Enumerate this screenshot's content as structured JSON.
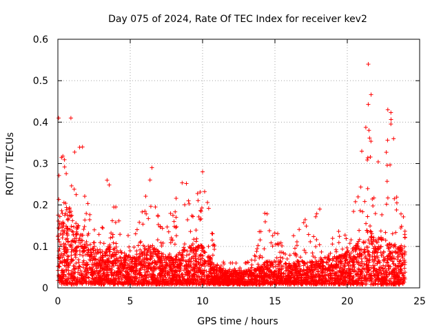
{
  "chart_data": {
    "type": "scatter",
    "title": "Day 075 of 2024, Rate Of TEC Index for receiver kev2",
    "xlabel": "GPS time / hours",
    "ylabel": "ROTI / TECUs",
    "xlim": [
      0,
      25
    ],
    "ylim": [
      0,
      0.6
    ],
    "x_ticks": [
      0,
      5,
      10,
      15,
      20,
      25
    ],
    "x_tick_labels": [
      "0",
      "5",
      "10",
      "15",
      "20",
      "25"
    ],
    "y_ticks": [
      0,
      0.1,
      0.2,
      0.3,
      0.4,
      0.5,
      0.6
    ],
    "y_tick_labels": [
      "0",
      "0.1",
      "0.2",
      "0.3",
      "0.4",
      "0.5",
      "0.6"
    ],
    "grid": true,
    "marker": "+",
    "color": "#ff0000",
    "series": [
      {
        "name": "ROTI",
        "envelope_x": [
          0,
          0.5,
          1,
          1.5,
          2,
          2.5,
          3,
          3.5,
          4,
          4.5,
          5,
          5.5,
          6,
          6.5,
          7,
          7.5,
          8,
          8.5,
          9,
          9.5,
          10,
          10.5,
          11,
          11.5,
          12,
          12.5,
          13,
          13.5,
          14,
          14.5,
          15,
          15.5,
          16,
          16.5,
          17,
          17.5,
          18,
          18.5,
          19,
          19.5,
          20,
          20.5,
          21,
          21.5,
          22,
          22.5,
          23,
          23.5,
          24
        ],
        "envelope_typical": [
          0.16,
          0.18,
          0.15,
          0.12,
          0.09,
          0.08,
          0.07,
          0.08,
          0.08,
          0.07,
          0.06,
          0.06,
          0.08,
          0.08,
          0.07,
          0.06,
          0.06,
          0.07,
          0.08,
          0.09,
          0.08,
          0.06,
          0.04,
          0.03,
          0.03,
          0.03,
          0.03,
          0.03,
          0.04,
          0.05,
          0.05,
          0.05,
          0.04,
          0.05,
          0.05,
          0.05,
          0.05,
          0.06,
          0.06,
          0.06,
          0.07,
          0.08,
          0.1,
          0.12,
          0.1,
          0.1,
          0.09,
          0.08,
          0.08
        ],
        "envelope_max": [
          0.41,
          0.3,
          0.41,
          0.34,
          0.22,
          0.17,
          0.13,
          0.26,
          0.21,
          0.15,
          0.15,
          0.14,
          0.21,
          0.29,
          0.15,
          0.14,
          0.21,
          0.25,
          0.27,
          0.22,
          0.28,
          0.2,
          0.08,
          0.06,
          0.06,
          0.06,
          0.06,
          0.07,
          0.16,
          0.18,
          0.15,
          0.1,
          0.09,
          0.16,
          0.17,
          0.14,
          0.19,
          0.1,
          0.12,
          0.14,
          0.15,
          0.19,
          0.33,
          0.54,
          0.34,
          0.26,
          0.43,
          0.18,
          0.18
        ],
        "notable_points": [
          {
            "x": 0.05,
            "y": 0.41
          },
          {
            "x": 0.9,
            "y": 0.41
          },
          {
            "x": 1.7,
            "y": 0.34
          },
          {
            "x": 3.4,
            "y": 0.26
          },
          {
            "x": 6.5,
            "y": 0.29
          },
          {
            "x": 10.0,
            "y": 0.28
          },
          {
            "x": 14.3,
            "y": 0.18
          },
          {
            "x": 18.1,
            "y": 0.19
          },
          {
            "x": 21.0,
            "y": 0.33
          },
          {
            "x": 21.45,
            "y": 0.54
          },
          {
            "x": 22.8,
            "y": 0.43
          },
          {
            "x": 23.2,
            "y": 0.36
          }
        ]
      }
    ]
  }
}
